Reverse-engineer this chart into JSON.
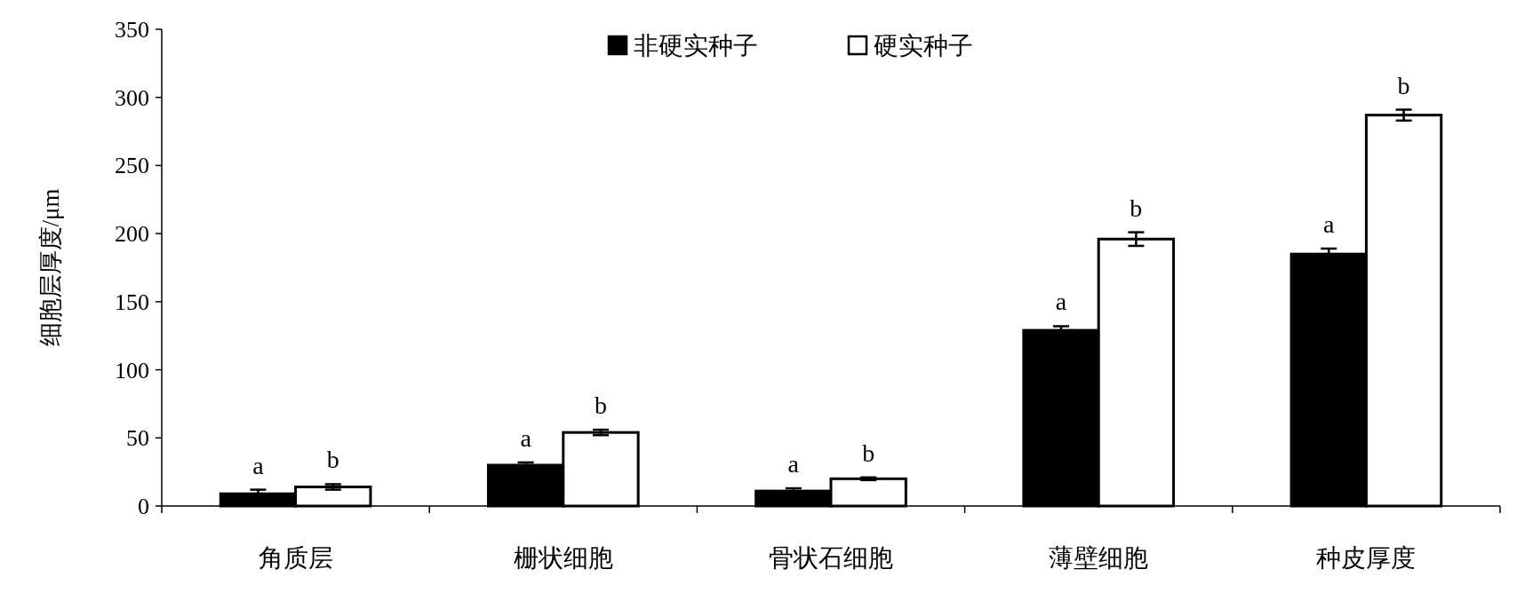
{
  "chart_data": {
    "type": "bar",
    "ylabel": "细胞层厚度/μm",
    "categories": [
      "角质层",
      "栅状细胞",
      "骨状石细胞",
      "薄壁细胞",
      "种皮厚度"
    ],
    "series": [
      {
        "name": "非硬实种子",
        "color": "#000000",
        "values": [
          9,
          30,
          11,
          129,
          185
        ],
        "errors": [
          3,
          2,
          2,
          3,
          4
        ],
        "value_labels": [
          "a",
          "a",
          "a",
          "a",
          "a"
        ]
      },
      {
        "name": "硬实种子",
        "color": "#ffffff",
        "values": [
          14,
          54,
          20,
          196,
          287
        ],
        "errors": [
          2,
          2,
          1,
          5,
          4
        ],
        "value_labels": [
          "b",
          "b",
          "b",
          "b",
          "b"
        ]
      }
    ],
    "ylim": [
      0,
      350
    ],
    "yticks": [
      0,
      50,
      100,
      150,
      200,
      250,
      300,
      350
    ],
    "grid": false,
    "legend": "top"
  }
}
